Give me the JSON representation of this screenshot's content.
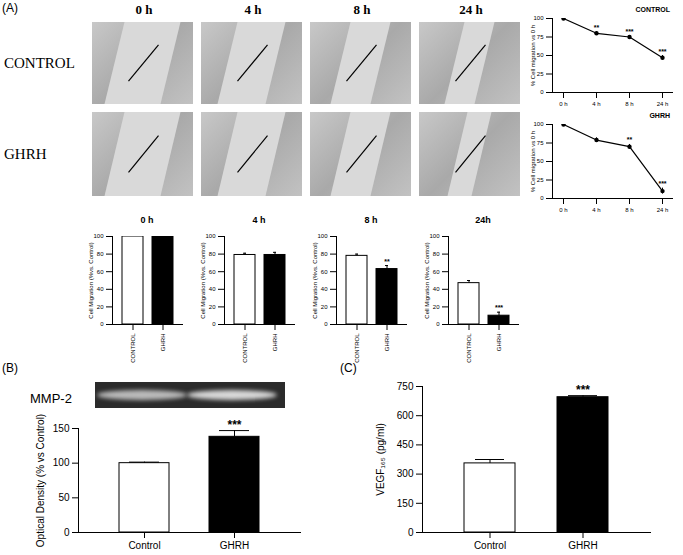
{
  "figure": {
    "panel_labels": [
      "(A)",
      "(B)",
      "(C)"
    ],
    "image_row_labels": [
      "CONTROL",
      "GHRH"
    ],
    "image_column_labels": [
      "0 h",
      "4 h",
      "8 h",
      "24 h"
    ],
    "gel_label": "MMP-2"
  },
  "chart_data": [
    {
      "type": "line",
      "title": "CONTROL",
      "ylabel": "% Cell migration vs 0 h",
      "categories": [
        "0 h",
        "4 h",
        "8 h",
        "24 h"
      ],
      "values": [
        100,
        80,
        75,
        47
      ],
      "errors": [
        0,
        2,
        2,
        3
      ],
      "annotations": [
        null,
        "**",
        "***",
        "***"
      ],
      "color": "#000000",
      "marker": "circle",
      "ylim": [
        0,
        100
      ],
      "yticks": [
        0,
        25,
        50,
        75,
        100
      ]
    },
    {
      "type": "line",
      "title": "GHRH",
      "ylabel": "% Cell migration vs 0 h",
      "categories": [
        "0 h",
        "4 h",
        "8 h",
        "24 h"
      ],
      "values": [
        100,
        79,
        70,
        10
      ],
      "errors": [
        0,
        3,
        3,
        4
      ],
      "annotations": [
        null,
        null,
        "**",
        "***"
      ],
      "color": "#000000",
      "marker": "circle",
      "ylim": [
        0,
        100
      ],
      "yticks": [
        0,
        25,
        50,
        75,
        100
      ]
    },
    {
      "type": "bar",
      "title": "0 h",
      "ylabel": "Cell Migration (%vs. Control)",
      "categories": [
        "CONTROL",
        "GHRH"
      ],
      "values": [
        100,
        100
      ],
      "errors": [
        0,
        0
      ],
      "annotations": [
        null,
        null
      ],
      "colors": [
        "#ffffff",
        "#000000"
      ],
      "ylim": [
        0,
        100
      ],
      "yticks": [
        0,
        20,
        40,
        60,
        80,
        100
      ]
    },
    {
      "type": "bar",
      "title": "4 h",
      "ylabel": "Cell Migration (%vs. Control)",
      "categories": [
        "CONTROL",
        "GHRH"
      ],
      "values": [
        79,
        79
      ],
      "errors": [
        2,
        3
      ],
      "annotations": [
        null,
        null
      ],
      "colors": [
        "#ffffff",
        "#000000"
      ],
      "ylim": [
        0,
        100
      ],
      "yticks": [
        0,
        20,
        40,
        60,
        80,
        100
      ]
    },
    {
      "type": "bar",
      "title": "8 h",
      "ylabel": "Cell Migration (%vs. Control)",
      "categories": [
        "CONTROL",
        "GHRH"
      ],
      "values": [
        78,
        63
      ],
      "errors": [
        2,
        4
      ],
      "annotations": [
        null,
        "**"
      ],
      "colors": [
        "#ffffff",
        "#000000"
      ],
      "ylim": [
        0,
        100
      ],
      "yticks": [
        0,
        20,
        40,
        60,
        80,
        100
      ]
    },
    {
      "type": "bar",
      "title": "24h",
      "ylabel": "Cell Migration (%vs. Control)",
      "categories": [
        "CONTROL",
        "GHRH"
      ],
      "values": [
        47,
        10
      ],
      "errors": [
        3,
        4
      ],
      "annotations": [
        null,
        "***"
      ],
      "colors": [
        "#ffffff",
        "#000000"
      ],
      "ylim": [
        0,
        100
      ],
      "yticks": [
        0,
        20,
        40,
        60,
        80,
        100
      ]
    },
    {
      "type": "bar",
      "ylabel": "Optical Density (% vs Control)",
      "categories": [
        "Control",
        "GHRH"
      ],
      "values": [
        100,
        138
      ],
      "errors": [
        1.5,
        9
      ],
      "annotations": [
        null,
        "***"
      ],
      "colors": [
        "#ffffff",
        "#000000"
      ],
      "ylim": [
        0,
        150
      ],
      "yticks": [
        0,
        50,
        100,
        150
      ]
    },
    {
      "type": "bar",
      "ylabel": "VEGF₁₆₅ (pg/ml)",
      "categories": [
        "Control",
        "GHRH"
      ],
      "values": [
        355,
        695
      ],
      "errors": [
        20,
        8
      ],
      "annotations": [
        null,
        "***"
      ],
      "colors": [
        "#ffffff",
        "#000000"
      ],
      "ylim": [
        0,
        750
      ],
      "yticks": [
        0,
        150,
        300,
        450,
        600,
        750
      ]
    }
  ]
}
